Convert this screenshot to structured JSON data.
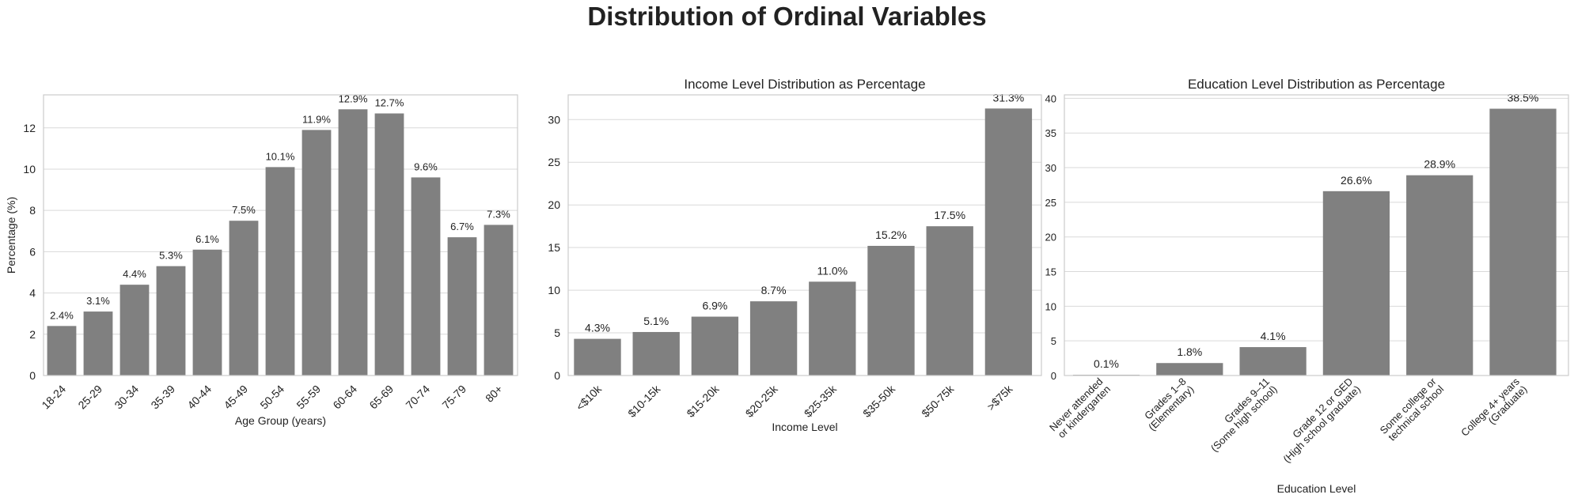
{
  "figure_title": "Distribution of Ordinal Variables",
  "colors": {
    "bar": "#808080",
    "grid": "#d9d9d9",
    "axes_edge": "#cccccc",
    "text": "#222222"
  },
  "chart_data": [
    {
      "type": "bar",
      "title": "",
      "xlabel": "Age Group (years)",
      "ylabel": "Percentage (%)",
      "categories": [
        "18-24",
        "25-29",
        "30-34",
        "35-39",
        "40-44",
        "45-49",
        "50-54",
        "55-59",
        "60-64",
        "65-69",
        "70-74",
        "75-79",
        "80+"
      ],
      "values": [
        2.4,
        3.1,
        4.4,
        5.3,
        6.1,
        7.5,
        10.1,
        11.9,
        12.9,
        12.7,
        9.6,
        6.7,
        7.3
      ],
      "data_labels": [
        "2.4%",
        "3.1%",
        "4.4%",
        "5.3%",
        "6.1%",
        "7.5%",
        "10.1%",
        "11.9%",
        "12.9%",
        "12.7%",
        "9.6%",
        "6.7%",
        "7.3%"
      ],
      "yticks": [
        0,
        2,
        4,
        6,
        8,
        10,
        12
      ],
      "ylim": [
        0,
        13.6
      ],
      "grid": true
    },
    {
      "type": "bar",
      "title": "Income Level Distribution as Percentage",
      "xlabel": "Income Level",
      "ylabel": "",
      "categories": [
        "<$10k",
        "$10-15k",
        "$15-20k",
        "$20-25k",
        "$25-35k",
        "$35-50k",
        "$50-75k",
        ">$75k"
      ],
      "values": [
        4.3,
        5.1,
        6.9,
        8.7,
        11.0,
        15.2,
        17.5,
        31.3
      ],
      "data_labels": [
        "4.3%",
        "5.1%",
        "6.9%",
        "8.7%",
        "11.0%",
        "15.2%",
        "17.5%",
        "31.3%"
      ],
      "yticks": [
        0,
        5,
        10,
        15,
        20,
        25,
        30
      ],
      "ylim": [
        0,
        32.9
      ],
      "grid": true
    },
    {
      "type": "bar",
      "title": "Education Level Distribution as Percentage",
      "xlabel": "Education Level",
      "ylabel": "",
      "categories": [
        [
          "Never attended",
          "or kindergarten"
        ],
        [
          "Grades 1–8",
          "(Elementary)"
        ],
        [
          "Grades 9–11",
          "(Some high school)"
        ],
        [
          "Grade 12 or GED",
          "(High school graduate)"
        ],
        [
          "Some college or",
          "technical school"
        ],
        [
          "College 4+ years",
          "(Graduate)"
        ]
      ],
      "values": [
        0.1,
        1.8,
        4.1,
        26.6,
        28.9,
        38.5
      ],
      "data_labels": [
        "0.1%",
        "1.8%",
        "4.1%",
        "26.6%",
        "28.9%",
        "38.5%"
      ],
      "yticks": [
        0,
        5,
        10,
        15,
        20,
        25,
        30,
        35,
        40
      ],
      "ylim": [
        0,
        40.5
      ],
      "grid": true
    }
  ]
}
